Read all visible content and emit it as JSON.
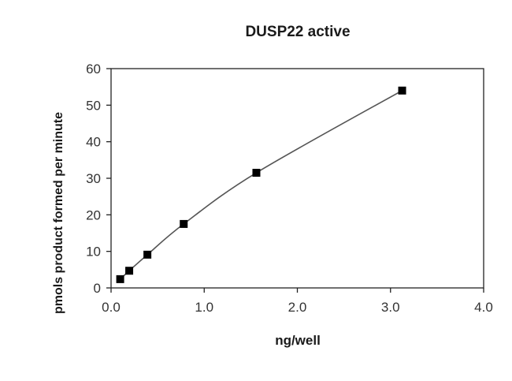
{
  "chart_data": {
    "type": "line",
    "title": "DUSP22 active",
    "xlabel": "ng/well",
    "ylabel": "pmols product formed  per minute",
    "xlim": [
      0,
      4.0
    ],
    "ylim": [
      0,
      60
    ],
    "x_ticks": [
      "0.0",
      "1.0",
      "2.0",
      "3.0",
      "4.0"
    ],
    "y_ticks": [
      "0",
      "10",
      "20",
      "30",
      "40",
      "50",
      "60"
    ],
    "grid": false,
    "legend": null,
    "series": [
      {
        "name": "DUSP22 active",
        "marker": "square",
        "line": "smooth",
        "x": [
          0.098,
          0.195,
          0.39,
          0.78,
          1.56,
          3.125
        ],
        "y": [
          2.4,
          4.7,
          9.1,
          17.5,
          31.5,
          54.0
        ]
      }
    ]
  },
  "colors": {
    "axis": "#222222",
    "line": "#555555",
    "marker": "#000000",
    "background": "#ffffff"
  }
}
